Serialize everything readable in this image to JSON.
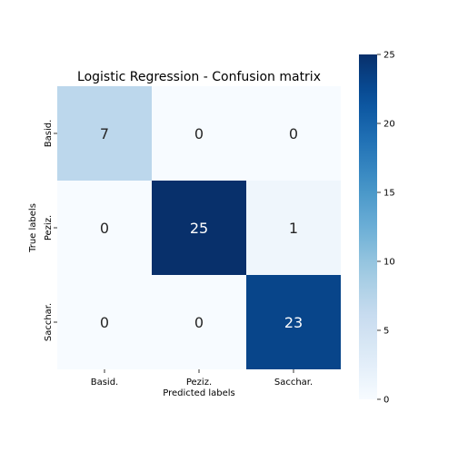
{
  "chart_data": {
    "type": "heatmap",
    "title": "Logistic Regression - Confusion matrix",
    "xlabel": "Predicted labels",
    "ylabel": "True labels",
    "x_categories": [
      "Basid.",
      "Peziz.",
      "Sacchar."
    ],
    "y_categories": [
      "Basid.",
      "Peziz.",
      "Sacchar."
    ],
    "values": [
      [
        7,
        0,
        0
      ],
      [
        0,
        25,
        1
      ],
      [
        0,
        0,
        23
      ]
    ],
    "annotations": true,
    "colormap": "Blues",
    "color_range": [
      0,
      25
    ],
    "colorbar_ticks": [
      0,
      5,
      10,
      15,
      20,
      25
    ]
  }
}
